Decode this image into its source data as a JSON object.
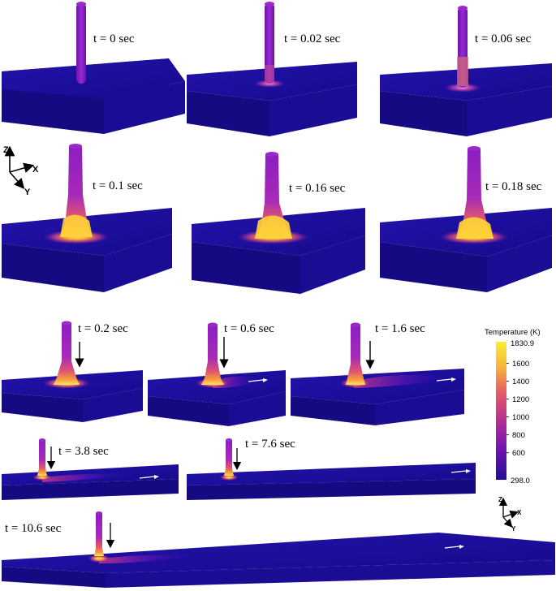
{
  "panels": [
    {
      "time_label": "t = 0 sec"
    },
    {
      "time_label": "t = 0.02 sec"
    },
    {
      "time_label": "t = 0.06 sec"
    },
    {
      "time_label": "t = 0.1 sec"
    },
    {
      "time_label": "t = 0.16 sec"
    },
    {
      "time_label": "t = 0.18 sec"
    },
    {
      "time_label": "t = 0.2 sec"
    },
    {
      "time_label": "t = 0.6 sec"
    },
    {
      "time_label": "t = 1.6 sec"
    },
    {
      "time_label": "t = 3.8 sec"
    },
    {
      "time_label": "t = 7.6 sec"
    },
    {
      "time_label": "t = 10.6 sec"
    }
  ],
  "axes_top": {
    "z": "Z",
    "x": "X",
    "y": "Y"
  },
  "axes_bottom": {
    "z": "Z",
    "x": "X",
    "y": "Y"
  },
  "colorbar": {
    "title": "Temperature (K)",
    "max": "1830.9",
    "min": "298.0",
    "ticks": [
      "1600",
      "1400",
      "1200",
      "1000",
      "800",
      "600"
    ],
    "colors": [
      "#f8ee32",
      "#f8a23a",
      "#e4566a",
      "#b22f95",
      "#6d13b0",
      "#200d96"
    ]
  },
  "colors": {
    "substrate": "#1d0fa0",
    "rod": "#8b1ec2",
    "melt": "#ffd23a"
  }
}
